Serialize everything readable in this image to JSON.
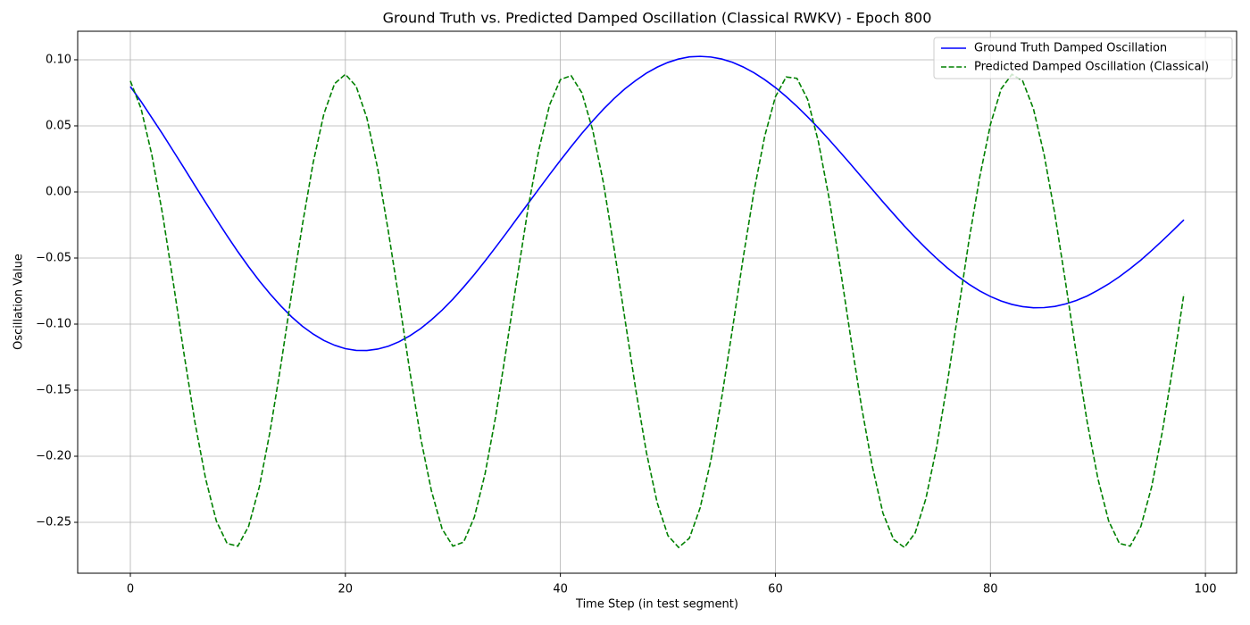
{
  "chart_data": {
    "type": "line",
    "title": "Ground Truth vs. Predicted Damped Oscillation (Classical RWKV) - Epoch 800",
    "x_label": "Time Step (in test segment)",
    "y_label": "Oscillation Value",
    "x": [
      0,
      1,
      2,
      3,
      4,
      5,
      6,
      7,
      8,
      9,
      10,
      11,
      12,
      13,
      14,
      15,
      16,
      17,
      18,
      19,
      20,
      21,
      22,
      23,
      24,
      25,
      26,
      27,
      28,
      29,
      30,
      31,
      32,
      33,
      34,
      35,
      36,
      37,
      38,
      39,
      40,
      41,
      42,
      43,
      44,
      45,
      46,
      47,
      48,
      49,
      50,
      51,
      52,
      53,
      54,
      55,
      56,
      57,
      58,
      59,
      60,
      61,
      62,
      63,
      64,
      65,
      66,
      67,
      68,
      69,
      70,
      71,
      72,
      73,
      74,
      75,
      76,
      77,
      78,
      79,
      80,
      81,
      82,
      83,
      84,
      85,
      86,
      87,
      88,
      89,
      90,
      91,
      92,
      93,
      94,
      95,
      96,
      97,
      98
    ],
    "series": [
      {
        "name": "Ground Truth Damped Oscillation",
        "color": "#0000ff",
        "dashed": false,
        "values": [
          0.0797,
          0.0684,
          0.0561,
          0.0438,
          0.0309,
          0.018,
          0.0049,
          -0.008,
          -0.0207,
          -0.0332,
          -0.0452,
          -0.0566,
          -0.0673,
          -0.0772,
          -0.0863,
          -0.0945,
          -0.1016,
          -0.1075,
          -0.1124,
          -0.116,
          -0.1186,
          -0.1199,
          -0.12,
          -0.1189,
          -0.1167,
          -0.1133,
          -0.1088,
          -0.1034,
          -0.0968,
          -0.0894,
          -0.0811,
          -0.072,
          -0.0624,
          -0.0522,
          -0.0416,
          -0.0308,
          -0.0197,
          -0.0087,
          0.0023,
          0.0132,
          0.0239,
          0.0343,
          0.0443,
          0.0537,
          0.0626,
          0.0707,
          0.078,
          0.0843,
          0.0899,
          0.0944,
          0.098,
          0.1006,
          0.1022,
          0.1026,
          0.1021,
          0.1006,
          0.0981,
          0.0946,
          0.0902,
          0.085,
          0.079,
          0.0722,
          0.0648,
          0.0568,
          0.0484,
          0.0395,
          0.0303,
          0.021,
          0.0115,
          0.002,
          -0.0075,
          -0.0167,
          -0.0258,
          -0.0344,
          -0.0426,
          -0.0503,
          -0.0575,
          -0.064,
          -0.0698,
          -0.0749,
          -0.0791,
          -0.0825,
          -0.0851,
          -0.0868,
          -0.0876,
          -0.0875,
          -0.0866,
          -0.0847,
          -0.0821,
          -0.0787,
          -0.0744,
          -0.0696,
          -0.0641,
          -0.058,
          -0.0515,
          -0.0443,
          -0.0368,
          -0.029,
          -0.0211
        ]
      },
      {
        "name": "Predicted Damped Oscillation (Classical)",
        "color": "#008000",
        "dashed": true,
        "values": [
          0.084,
          0.063,
          0.028,
          -0.017,
          -0.069,
          -0.123,
          -0.174,
          -0.217,
          -0.249,
          -0.266,
          -0.268,
          -0.253,
          -0.223,
          -0.181,
          -0.131,
          -0.077,
          -0.025,
          0.022,
          0.059,
          0.082,
          0.089,
          0.08,
          0.056,
          0.018,
          -0.03,
          -0.082,
          -0.136,
          -0.186,
          -0.226,
          -0.255,
          -0.268,
          -0.265,
          -0.246,
          -0.213,
          -0.169,
          -0.117,
          -0.064,
          -0.012,
          0.032,
          0.066,
          0.085,
          0.088,
          0.075,
          0.047,
          0.007,
          -0.043,
          -0.096,
          -0.149,
          -0.197,
          -0.235,
          -0.26,
          -0.269,
          -0.262,
          -0.239,
          -0.203,
          -0.156,
          -0.104,
          -0.05,
          0.0,
          0.042,
          0.072,
          0.087,
          0.086,
          0.07,
          0.038,
          -0.005,
          -0.056,
          -0.11,
          -0.162,
          -0.207,
          -0.243,
          -0.263,
          -0.269,
          -0.258,
          -0.232,
          -0.193,
          -0.144,
          -0.091,
          -0.037,
          0.011,
          0.051,
          0.078,
          0.089,
          0.084,
          0.063,
          0.028,
          -0.017,
          -0.069,
          -0.123,
          -0.174,
          -0.217,
          -0.249,
          -0.266,
          -0.268,
          -0.253,
          -0.223,
          -0.181,
          -0.131,
          -0.077
        ]
      }
    ],
    "xlim": [
      -4.9,
      102.9
    ],
    "ylim": [
      -0.2885,
      0.1216
    ],
    "xticks": [
      0,
      20,
      40,
      60,
      80,
      100
    ],
    "yticks": [
      {
        "value": -0.25,
        "label": "−0.25"
      },
      {
        "value": -0.2,
        "label": "−0.20"
      },
      {
        "value": -0.15,
        "label": "−0.15"
      },
      {
        "value": -0.1,
        "label": "−0.10"
      },
      {
        "value": -0.05,
        "label": "−0.05"
      },
      {
        "value": 0,
        "label": "0.00"
      },
      {
        "value": 0.05,
        "label": "0.05"
      },
      {
        "value": 0.1,
        "label": "0.10"
      }
    ],
    "grid": true,
    "legend": "upper right"
  }
}
